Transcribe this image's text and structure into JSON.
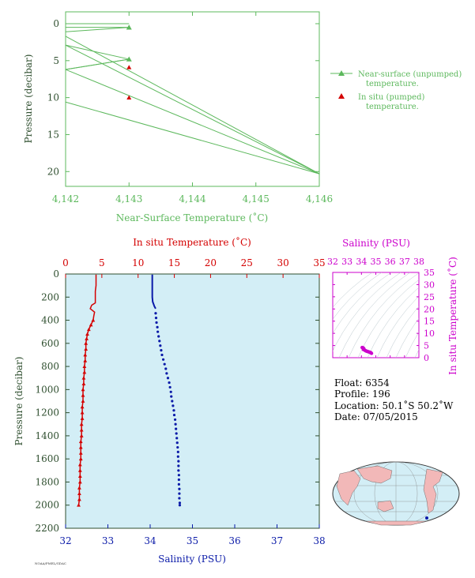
{
  "colors": {
    "green": "#5cb85c",
    "dark_green": "#2f4f2f",
    "red": "#d40000",
    "blue": "#0a1aa8",
    "magenta": "#cc00cc",
    "plot_bg": "#d3eef6",
    "land": "#f2b8b8"
  },
  "chart_data": [
    {
      "type": "line",
      "ylabel": "Pressure (decibar)",
      "xlabel": "Near-Surface Temperature (˚C)",
      "xlim": [
        4.142,
        4.146
      ],
      "ylim": [
        0,
        22
      ],
      "x_ticks": [
        "4,142",
        "4,143",
        "4,144",
        "4,145",
        "4,146"
      ],
      "y_ticks": [
        "0",
        "5",
        "10",
        "15",
        "20"
      ],
      "series": [
        {
          "name": "Near-surface (unpumped) temperature.",
          "marker": "triangle",
          "color": "#5cb85c",
          "x": [
            4.142,
            4.143,
            4.142,
            4.143,
            4.142,
            4.146,
            4.142,
            4.146
          ],
          "y": [
            0,
            0,
            0.5,
            0.5,
            1.7,
            20.3,
            2.9,
            20.3
          ],
          "marked_points": [
            [
              4.143,
              0.5
            ],
            [
              4.143,
              4.8
            ]
          ]
        },
        {
          "name": "In situ (pumped) temperature.",
          "marker": "triangle",
          "color": "#d40000",
          "x": [
            4.143,
            4.143
          ],
          "y": [
            5.9,
            10.0
          ]
        }
      ],
      "legend": {
        "placement": "right",
        "entries": [
          {
            "line1": "Near-surface (unpumped)",
            "line2": "temperature."
          },
          {
            "line1": "In situ (pumped)",
            "line2": "temperature."
          }
        ]
      }
    },
    {
      "type": "line",
      "top_axis_label": "In situ Temperature (˚C)",
      "bottom_axis_label": "Salinity (PSU)",
      "ylabel": "Pressure (decibar)",
      "temp_ticks": [
        "0",
        "5",
        "10",
        "15",
        "20",
        "25",
        "30",
        "35"
      ],
      "sal_ticks": [
        "32",
        "33",
        "34",
        "35",
        "36",
        "37",
        "38"
      ],
      "p_ticks": [
        "0",
        "200",
        "400",
        "600",
        "800",
        "1000",
        "1200",
        "1400",
        "1600",
        "1800",
        "2000",
        "2200"
      ],
      "temp_range": [
        0,
        35
      ],
      "sal_range": [
        32,
        38
      ],
      "pressure_range": [
        0,
        2200
      ],
      "temperature_series": {
        "name": "In situ Temperature",
        "pressure": [
          5,
          50,
          100,
          150,
          200,
          250,
          270,
          300,
          330,
          360,
          400,
          440,
          480,
          520,
          560,
          600,
          650,
          700,
          750,
          800,
          850,
          900,
          950,
          1000,
          1050,
          1100,
          1150,
          1200,
          1250,
          1300,
          1350,
          1400,
          1450,
          1500,
          1550,
          1600,
          1650,
          1700,
          1750,
          1800,
          1850,
          1900,
          1950,
          2000
        ],
        "temperature": [
          4.2,
          4.2,
          4.2,
          4.1,
          4.1,
          4.1,
          3.6,
          3.4,
          4.0,
          3.9,
          3.8,
          3.5,
          3.2,
          3.0,
          2.9,
          2.8,
          2.8,
          2.7,
          2.7,
          2.6,
          2.6,
          2.5,
          2.5,
          2.4,
          2.4,
          2.4,
          2.3,
          2.3,
          2.3,
          2.2,
          2.2,
          2.2,
          2.1,
          2.1,
          2.1,
          2.1,
          2.0,
          2.0,
          2.0,
          2.0,
          1.9,
          1.9,
          1.9,
          1.8
        ]
      },
      "salinity_series": {
        "name": "Salinity",
        "pressure": [
          5,
          40,
          80,
          120,
          160,
          200,
          240,
          280,
          300,
          340,
          380,
          420,
          460,
          500,
          540,
          580,
          620,
          660,
          700,
          740,
          780,
          820,
          860,
          900,
          940,
          980,
          1020,
          1060,
          1100,
          1140,
          1180,
          1220,
          1260,
          1300,
          1340,
          1380,
          1420,
          1460,
          1500,
          1540,
          1580,
          1620,
          1660,
          1700,
          1740,
          1780,
          1820,
          1860,
          1900,
          1940,
          1980,
          2000
        ],
        "salinity": [
          34.05,
          34.05,
          34.05,
          34.05,
          34.05,
          34.05,
          34.06,
          34.1,
          34.13,
          34.13,
          34.14,
          34.15,
          34.17,
          34.18,
          34.2,
          34.22,
          34.24,
          34.26,
          34.28,
          34.31,
          34.34,
          34.37,
          34.39,
          34.42,
          34.45,
          34.47,
          34.49,
          34.5,
          34.52,
          34.54,
          34.56,
          34.57,
          34.59,
          34.6,
          34.61,
          34.62,
          34.63,
          34.64,
          34.65,
          34.66,
          34.66,
          34.67,
          34.67,
          34.67,
          34.68,
          34.68,
          34.68,
          34.69,
          34.69,
          34.69,
          34.7,
          34.7
        ]
      }
    },
    {
      "type": "scatter",
      "title": "Salinity (PSU)",
      "ylabel": "In situ Temperature (˚C)",
      "sal_ticks": [
        "32",
        "33",
        "34",
        "35",
        "36",
        "37",
        "38"
      ],
      "temp_ticks": [
        "0",
        "5",
        "10",
        "15",
        "20",
        "25",
        "30",
        "35"
      ],
      "sal_range": [
        32,
        38
      ],
      "temp_range": [
        0,
        35
      ],
      "points_sal": [
        34.05,
        34.1,
        34.13,
        34.16,
        34.2,
        34.25,
        34.3,
        34.35,
        34.4,
        34.45,
        34.5,
        34.55,
        34.6,
        34.65,
        34.7
      ],
      "points_temp": [
        4.2,
        4.1,
        3.4,
        3.8,
        3.2,
        3.0,
        2.8,
        2.7,
        2.6,
        2.5,
        2.4,
        2.3,
        2.2,
        2.1,
        1.8
      ]
    }
  ],
  "info": {
    "float_line": "Float: 6354",
    "profile_line": "Profile: 196",
    "location_line": "Location: 50.1˚S 50.2˚W",
    "date_line": "Date: 07/05/2015"
  },
  "footer_text": "NOAA/PMEL/GDAC"
}
